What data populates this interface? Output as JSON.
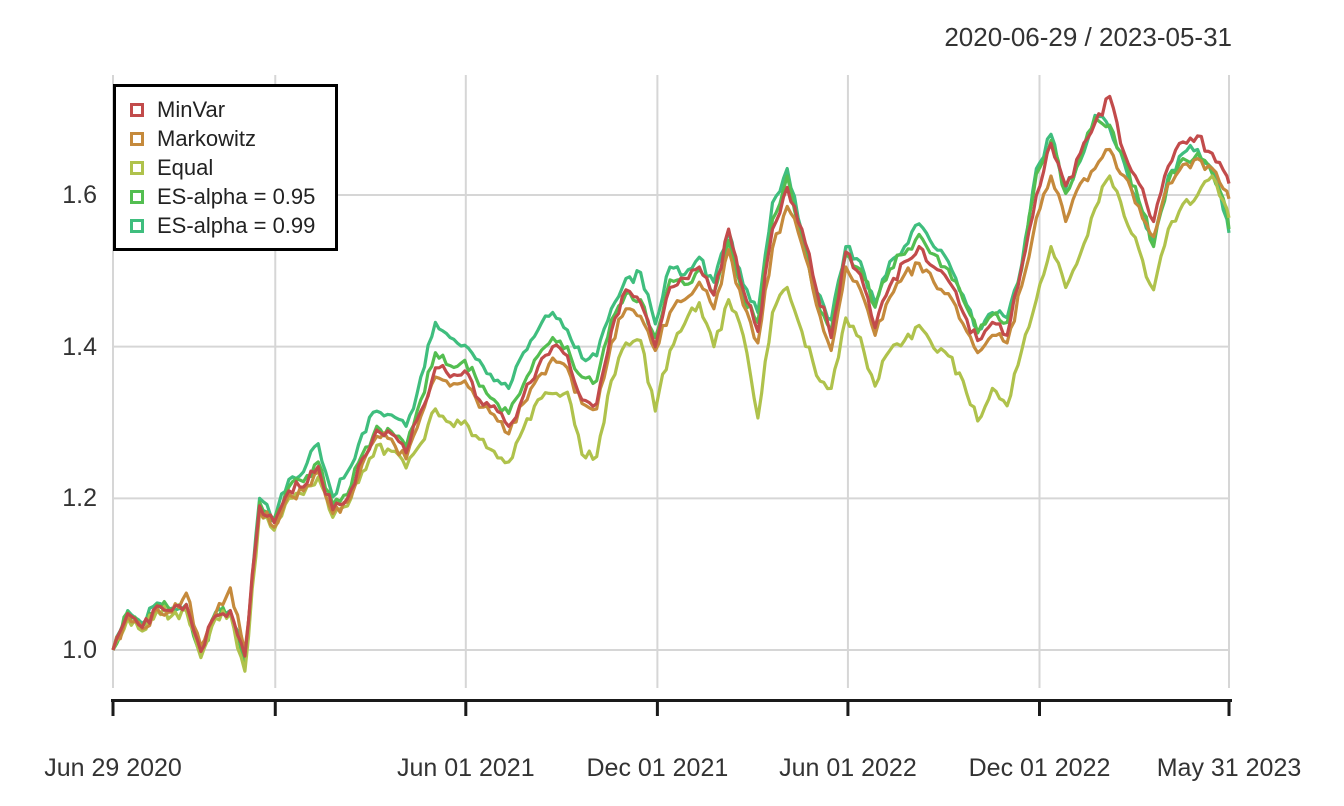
{
  "chart_data": {
    "type": "line",
    "title": "2020-06-29 / 2023-05-31",
    "grid": true,
    "legend_position": "topleft",
    "x_axis": {
      "start_date": "Jun 29 2020",
      "end_date": "May 31 2023",
      "range_days": [
        0,
        1066
      ],
      "ticks": [
        {
          "t": 0,
          "label": "Jun 29 2020"
        },
        {
          "t": 155,
          "label": ""
        },
        {
          "t": 337,
          "label": "Jun 01 2021"
        },
        {
          "t": 520,
          "label": "Dec 01 2021"
        },
        {
          "t": 702,
          "label": "Jun 01 2022"
        },
        {
          "t": 885,
          "label": "Dec 01 2022"
        },
        {
          "t": 1066,
          "label": "May 31 2023"
        }
      ]
    },
    "y_axis": {
      "tick_values": [
        1.0,
        1.2,
        1.4,
        1.6
      ],
      "tick_labels": [
        "1.0",
        "1.2",
        "1.4",
        "1.6"
      ],
      "range": [
        0.955,
        1.758
      ]
    },
    "palette": {
      "grid": "#D6D6D6",
      "axis": "#1A1A1A",
      "text": "#333333",
      "legend_border": "#000000",
      "background": "#FFFFFF"
    },
    "t_days": [
      0,
      14,
      28,
      42,
      56,
      70,
      84,
      98,
      112,
      126,
      140,
      154,
      168,
      182,
      196,
      210,
      224,
      238,
      252,
      266,
      280,
      294,
      308,
      322,
      336,
      350,
      364,
      378,
      392,
      406,
      420,
      434,
      448,
      462,
      476,
      490,
      504,
      518,
      532,
      546,
      560,
      574,
      588,
      602,
      616,
      630,
      644,
      658,
      672,
      686,
      700,
      714,
      728,
      742,
      756,
      770,
      784,
      798,
      812,
      826,
      840,
      854,
      868,
      882,
      896,
      910,
      924,
      938,
      952,
      966,
      980,
      994,
      1008,
      1022,
      1036,
      1050,
      1064,
      1066
    ],
    "series": [
      {
        "name": "MinVar",
        "color": "#C24B4B",
        "values": [
          1.0,
          1.048,
          1.03,
          1.058,
          1.052,
          1.06,
          0.998,
          1.045,
          1.052,
          0.992,
          1.19,
          1.168,
          1.21,
          1.215,
          1.242,
          1.185,
          1.2,
          1.252,
          1.29,
          1.285,
          1.26,
          1.315,
          1.372,
          1.36,
          1.368,
          1.33,
          1.322,
          1.295,
          1.335,
          1.373,
          1.4,
          1.388,
          1.33,
          1.325,
          1.42,
          1.475,
          1.458,
          1.4,
          1.478,
          1.49,
          1.505,
          1.468,
          1.555,
          1.475,
          1.42,
          1.555,
          1.61,
          1.555,
          1.475,
          1.412,
          1.525,
          1.495,
          1.425,
          1.48,
          1.512,
          1.532,
          1.505,
          1.487,
          1.445,
          1.408,
          1.432,
          1.415,
          1.505,
          1.6,
          1.668,
          1.612,
          1.655,
          1.695,
          1.73,
          1.655,
          1.615,
          1.565,
          1.638,
          1.67,
          1.678,
          1.655,
          1.625,
          1.615
        ]
      },
      {
        "name": "Markowitz",
        "color": "#C58A3C",
        "values": [
          1.0,
          1.045,
          1.028,
          1.055,
          1.05,
          1.075,
          1.005,
          1.048,
          1.082,
          0.998,
          1.185,
          1.162,
          1.205,
          1.21,
          1.235,
          1.18,
          1.195,
          1.245,
          1.282,
          1.278,
          1.252,
          1.308,
          1.36,
          1.348,
          1.355,
          1.32,
          1.31,
          1.285,
          1.325,
          1.36,
          1.385,
          1.372,
          1.325,
          1.318,
          1.405,
          1.45,
          1.44,
          1.395,
          1.445,
          1.462,
          1.485,
          1.45,
          1.528,
          1.455,
          1.405,
          1.53,
          1.585,
          1.535,
          1.455,
          1.395,
          1.505,
          1.475,
          1.415,
          1.465,
          1.495,
          1.51,
          1.485,
          1.47,
          1.43,
          1.392,
          1.415,
          1.405,
          1.48,
          1.57,
          1.625,
          1.565,
          1.615,
          1.635,
          1.66,
          1.625,
          1.585,
          1.545,
          1.615,
          1.64,
          1.648,
          1.635,
          1.605,
          1.595
        ]
      },
      {
        "name": "Equal",
        "color": "#AFC24C",
        "values": [
          1.0,
          1.042,
          1.025,
          1.052,
          1.045,
          1.052,
          0.99,
          1.042,
          1.048,
          0.972,
          1.182,
          1.158,
          1.2,
          1.205,
          1.228,
          1.175,
          1.19,
          1.235,
          1.27,
          1.262,
          1.24,
          1.272,
          1.318,
          1.3,
          1.302,
          1.278,
          1.262,
          1.248,
          1.292,
          1.33,
          1.338,
          1.34,
          1.258,
          1.255,
          1.355,
          1.405,
          1.408,
          1.315,
          1.395,
          1.43,
          1.458,
          1.4,
          1.462,
          1.415,
          1.306,
          1.445,
          1.478,
          1.42,
          1.362,
          1.345,
          1.438,
          1.412,
          1.348,
          1.395,
          1.408,
          1.428,
          1.398,
          1.388,
          1.355,
          1.302,
          1.345,
          1.322,
          1.395,
          1.462,
          1.532,
          1.478,
          1.522,
          1.582,
          1.625,
          1.572,
          1.528,
          1.475,
          1.555,
          1.588,
          1.6,
          1.625,
          1.582,
          1.57
        ]
      },
      {
        "name": "ES-alpha = 0.95",
        "color": "#53BE51",
        "values": [
          1.0,
          1.05,
          1.032,
          1.06,
          1.052,
          1.058,
          0.992,
          1.048,
          1.05,
          0.985,
          1.195,
          1.17,
          1.215,
          1.222,
          1.248,
          1.192,
          1.205,
          1.258,
          1.295,
          1.288,
          1.268,
          1.33,
          1.392,
          1.375,
          1.382,
          1.348,
          1.33,
          1.312,
          1.35,
          1.388,
          1.412,
          1.4,
          1.36,
          1.355,
          1.435,
          1.47,
          1.462,
          1.412,
          1.488,
          1.482,
          1.502,
          1.47,
          1.54,
          1.462,
          1.432,
          1.568,
          1.625,
          1.542,
          1.462,
          1.422,
          1.522,
          1.502,
          1.452,
          1.502,
          1.522,
          1.548,
          1.522,
          1.502,
          1.462,
          1.418,
          1.442,
          1.432,
          1.502,
          1.628,
          1.672,
          1.602,
          1.648,
          1.702,
          1.692,
          1.648,
          1.592,
          1.532,
          1.618,
          1.648,
          1.655,
          1.628,
          1.578,
          1.555
        ]
      },
      {
        "name": "ES-alpha = 0.99",
        "color": "#3FBE7E",
        "values": [
          1.0,
          1.052,
          1.035,
          1.062,
          1.055,
          1.06,
          0.995,
          1.05,
          1.052,
          0.988,
          1.2,
          1.172,
          1.225,
          1.235,
          1.272,
          1.202,
          1.235,
          1.285,
          1.315,
          1.31,
          1.295,
          1.36,
          1.432,
          1.412,
          1.402,
          1.382,
          1.355,
          1.345,
          1.392,
          1.422,
          1.445,
          1.422,
          1.385,
          1.388,
          1.45,
          1.49,
          1.498,
          1.43,
          1.505,
          1.495,
          1.518,
          1.485,
          1.552,
          1.482,
          1.445,
          1.59,
          1.635,
          1.552,
          1.472,
          1.435,
          1.532,
          1.512,
          1.458,
          1.512,
          1.532,
          1.562,
          1.532,
          1.512,
          1.468,
          1.422,
          1.445,
          1.438,
          1.508,
          1.635,
          1.68,
          1.608,
          1.645,
          1.705,
          1.688,
          1.642,
          1.585,
          1.535,
          1.625,
          1.655,
          1.66,
          1.635,
          1.568,
          1.55
        ]
      }
    ]
  }
}
